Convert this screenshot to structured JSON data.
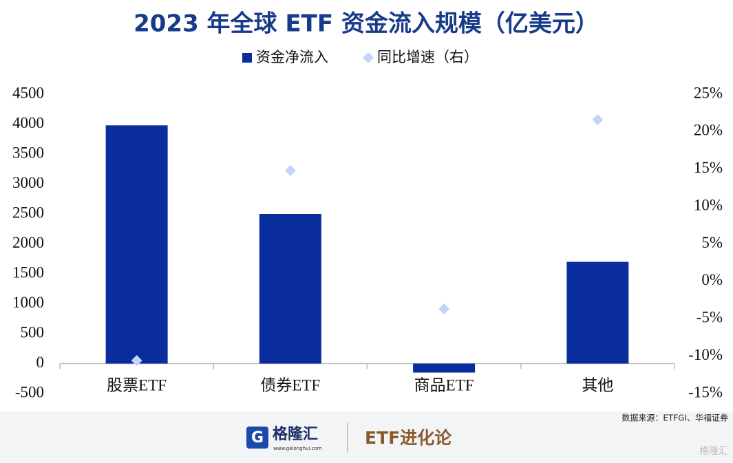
{
  "chart_data": {
    "type": "bar",
    "title": "2023 年全球 ETF 资金流入规模（亿美元）",
    "categories": [
      "股票ETF",
      "债券ETF",
      "商品ETF",
      "其他"
    ],
    "series": [
      {
        "name": "资金净流入",
        "type": "bar",
        "color": "#0a2d9e",
        "values": [
          3980,
          2500,
          -150,
          1700
        ]
      },
      {
        "name": "同比增速（右）",
        "type": "scatter",
        "marker": "diamond",
        "axis": "y2",
        "color": "#c3d3fa",
        "values": [
          -10.6,
          14.8,
          -3.7,
          21.6
        ]
      }
    ],
    "ylim": [
      -500,
      4500
    ],
    "yticks": [
      -500,
      0,
      500,
      1000,
      1500,
      2000,
      2500,
      3000,
      3500,
      4000,
      4500
    ],
    "y2lim": [
      -15,
      25
    ],
    "y2ticks": [
      {
        "value": -15,
        "label": "-15%"
      },
      {
        "value": -10,
        "label": "-10%"
      },
      {
        "value": -5,
        "label": "-5%"
      },
      {
        "value": 0,
        "label": "0%"
      },
      {
        "value": 5,
        "label": "5%"
      },
      {
        "value": 10,
        "label": "10%"
      },
      {
        "value": 15,
        "label": "15%"
      },
      {
        "value": 20,
        "label": "20%"
      },
      {
        "value": 25,
        "label": "25%"
      }
    ],
    "grid": false,
    "legend": "top"
  },
  "footer": {
    "source": "数据来源：ETFGI、华福证券",
    "logo": "格隆汇",
    "url": "www.gelonghui.com",
    "column": "ETF进化论",
    "watermark": "格隆汇"
  }
}
